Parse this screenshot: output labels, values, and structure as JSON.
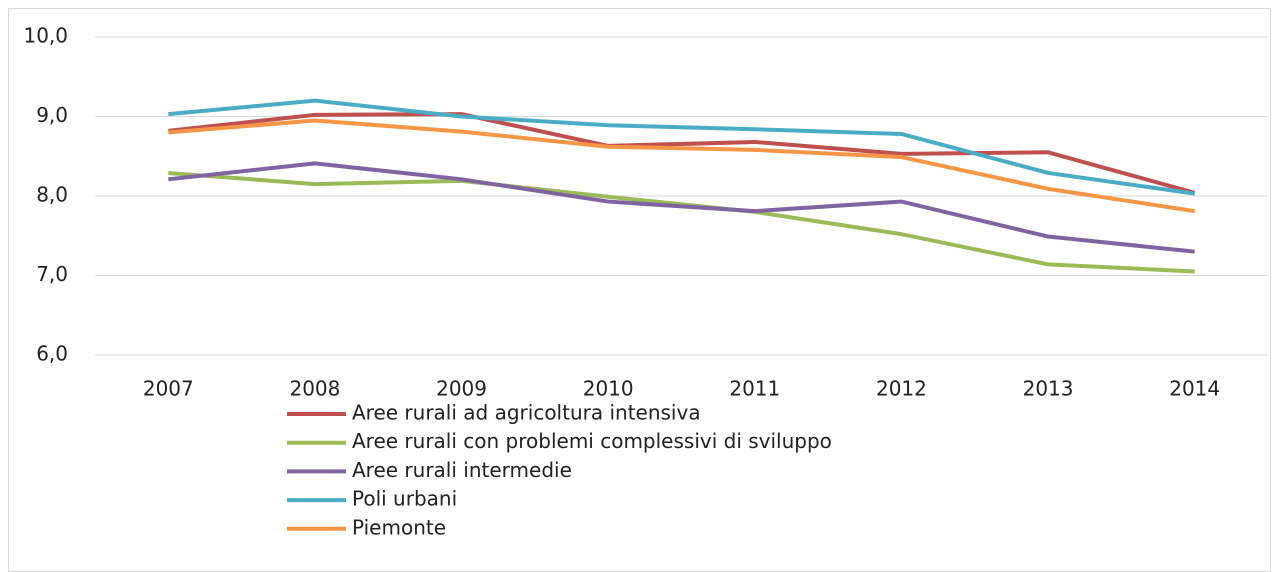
{
  "chart_data": {
    "type": "line",
    "categories": [
      "2007",
      "2008",
      "2009",
      "2010",
      "2011",
      "2012",
      "2013",
      "2014"
    ],
    "series": [
      {
        "name": "Aree rurali ad agricoltura intensiva",
        "color": "#c0504d",
        "values": [
          8.82,
          9.02,
          9.03,
          8.63,
          8.68,
          8.53,
          8.55,
          8.04
        ]
      },
      {
        "name": "Aree rurali con problemi complessivi di sviluppo",
        "color": "#9bbb59",
        "values": [
          8.29,
          8.15,
          8.19,
          7.99,
          7.8,
          7.52,
          7.14,
          7.05
        ]
      },
      {
        "name": "Aree rurali intermedie",
        "color": "#8064a2",
        "values": [
          8.21,
          8.41,
          8.21,
          7.93,
          7.81,
          7.93,
          7.49,
          7.3
        ]
      },
      {
        "name": "Poli urbani",
        "color": "#4bacc6",
        "values": [
          9.03,
          9.2,
          9.0,
          8.89,
          8.84,
          8.78,
          8.29,
          8.03
        ]
      },
      {
        "name": "Piemonte",
        "color": "#f79646",
        "values": [
          8.8,
          8.95,
          8.81,
          8.62,
          8.58,
          8.49,
          8.09,
          7.81
        ]
      }
    ],
    "ylim": [
      6,
      10
    ],
    "yticks": [
      {
        "value": 6,
        "label": "6,0"
      },
      {
        "value": 7,
        "label": "7,0"
      },
      {
        "value": 8,
        "label": "8,0"
      },
      {
        "value": 9,
        "label": "9,0"
      },
      {
        "value": 10,
        "label": "10,0"
      }
    ],
    "grid": true,
    "legend": "bottom"
  }
}
